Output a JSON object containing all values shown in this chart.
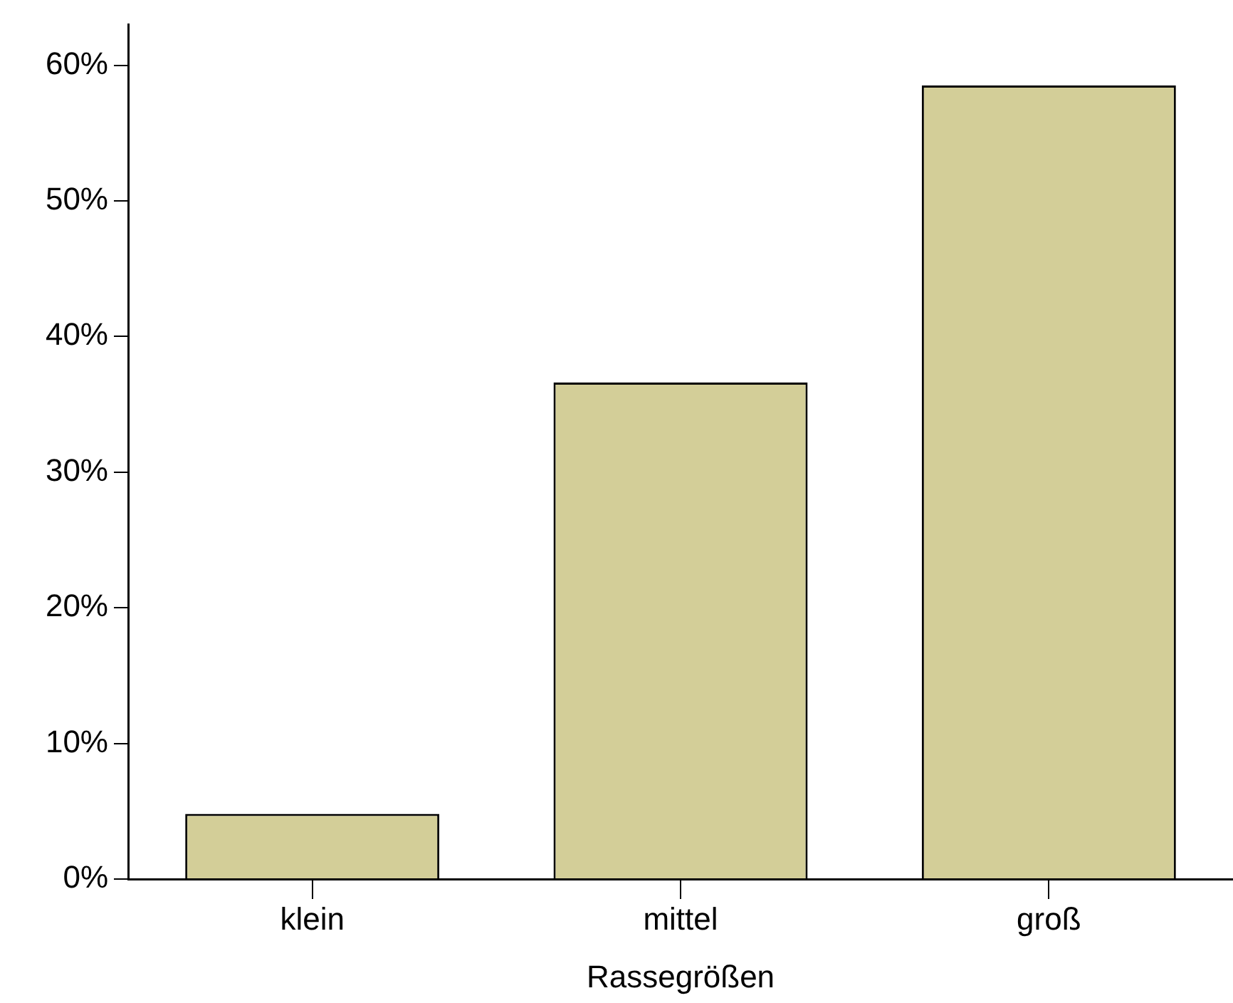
{
  "chart_data": {
    "type": "bar",
    "xlabel": "Rassegrößen",
    "categories": [
      "klein",
      "mittel",
      "groß"
    ],
    "values": [
      4.8,
      36.6,
      58.5
    ],
    "color": "#d3ce98",
    "ylim": [
      0,
      63
    ],
    "yticks": [
      {
        "value": 0,
        "label": "0%"
      },
      {
        "value": 10,
        "label": "10%"
      },
      {
        "value": 20,
        "label": "20%"
      },
      {
        "value": 30,
        "label": "30%"
      },
      {
        "value": 40,
        "label": "40%"
      },
      {
        "value": 50,
        "label": "50%"
      },
      {
        "value": 60,
        "label": "60%"
      }
    ]
  }
}
